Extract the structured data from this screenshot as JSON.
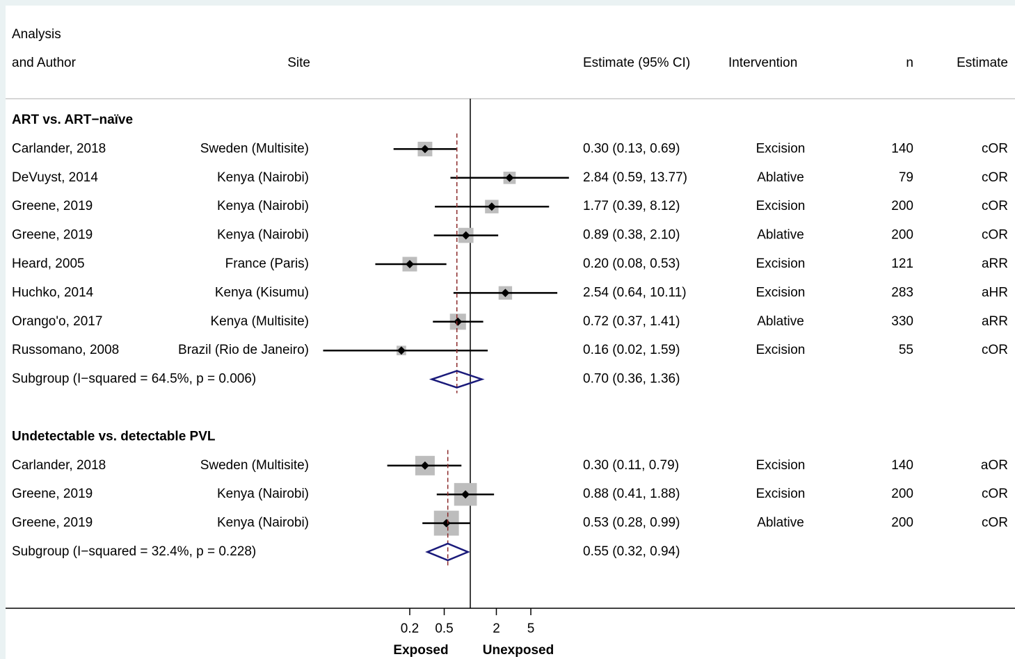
{
  "chart_data": {
    "type": "forest",
    "log_scale": true,
    "reference": 1,
    "xlim": [
      0.02,
      14
    ],
    "xticks": [
      0.2,
      0.5,
      2,
      5
    ],
    "xlabel_left": "Exposed",
    "xlabel_right": "Unexposed",
    "header": {
      "author_top": "Analysis",
      "author": "and Author",
      "site": "Site",
      "estimate": "Estimate (95% CI)",
      "intervention": "Intervention",
      "n": "n",
      "measure": "Estimate"
    },
    "groups": [
      {
        "title": "ART vs. ART−naïve",
        "studies": [
          {
            "author": "Carlander, 2018",
            "site": "Sweden (Multisite)",
            "estimate": 0.3,
            "lower": 0.13,
            "upper": 0.69,
            "estimate_label": "0.30 (0.13, 0.69)",
            "intervention": "Excision",
            "n": 140,
            "measure": "cOR",
            "weight": 14
          },
          {
            "author": "DeVuyst, 2014",
            "site": "Kenya (Nairobi)",
            "estimate": 2.84,
            "lower": 0.59,
            "upper": 13.77,
            "estimate_label": "2.84 (0.59, 13.77)",
            "intervention": "Ablative",
            "n": 79,
            "measure": "cOR",
            "weight": 10
          },
          {
            "author": "Greene, 2019",
            "site": "Kenya (Nairobi)",
            "estimate": 1.77,
            "lower": 0.39,
            "upper": 8.12,
            "estimate_label": "1.77 (0.39, 8.12)",
            "intervention": "Excision",
            "n": 200,
            "measure": "cOR",
            "weight": 12
          },
          {
            "author": "Greene, 2019",
            "site": "Kenya (Nairobi)",
            "estimate": 0.89,
            "lower": 0.38,
            "upper": 2.1,
            "estimate_label": "0.89 (0.38, 2.10)",
            "intervention": "Ablative",
            "n": 200,
            "measure": "cOR",
            "weight": 15
          },
          {
            "author": "Heard, 2005",
            "site": "France (Paris)",
            "estimate": 0.2,
            "lower": 0.08,
            "upper": 0.53,
            "estimate_label": "0.20 (0.08, 0.53)",
            "intervention": "Excision",
            "n": 121,
            "measure": "aRR",
            "weight": 14
          },
          {
            "author": "Huchko, 2014",
            "site": "Kenya (Kisumu)",
            "estimate": 2.54,
            "lower": 0.64,
            "upper": 10.11,
            "estimate_label": "2.54 (0.64, 10.11)",
            "intervention": "Excision",
            "n": 283,
            "measure": "aHR",
            "weight": 12
          },
          {
            "author": "Orango'o, 2017",
            "site": "Kenya (Multisite)",
            "estimate": 0.72,
            "lower": 0.37,
            "upper": 1.41,
            "estimate_label": "0.72 (0.37, 1.41)",
            "intervention": "Ablative",
            "n": 330,
            "measure": "aRR",
            "weight": 17
          },
          {
            "author": "Russomano, 2008",
            "site": "Brazil (Rio de Janeiro)",
            "estimate": 0.16,
            "lower": 0.02,
            "upper": 1.59,
            "estimate_label": "0.16 (0.02, 1.59)",
            "intervention": "Excision",
            "n": 55,
            "measure": "cOR",
            "weight": 6
          }
        ],
        "pooled": {
          "label": "Subgroup (I−squared = 64.5%, p = 0.006)",
          "estimate": 0.7,
          "lower": 0.36,
          "upper": 1.36,
          "estimate_label": "0.70 (0.36, 1.36)"
        }
      },
      {
        "title": "Undetectable vs. detectable PVL",
        "studies": [
          {
            "author": "Carlander, 2018",
            "site": "Sweden (Multisite)",
            "estimate": 0.3,
            "lower": 0.11,
            "upper": 0.79,
            "estimate_label": "0.30 (0.11, 0.79)",
            "intervention": "Excision",
            "n": 140,
            "measure": "aOR",
            "weight": 25
          },
          {
            "author": "Greene, 2019",
            "site": "Kenya (Nairobi)",
            "estimate": 0.88,
            "lower": 0.41,
            "upper": 1.88,
            "estimate_label": "0.88 (0.41, 1.88)",
            "intervention": "Excision",
            "n": 200,
            "measure": "cOR",
            "weight": 34
          },
          {
            "author": "Greene, 2019",
            "site": "Kenya (Nairobi)",
            "estimate": 0.53,
            "lower": 0.28,
            "upper": 0.99,
            "estimate_label": "0.53 (0.28, 0.99)",
            "intervention": "Ablative",
            "n": 200,
            "measure": "cOR",
            "weight": 41
          }
        ],
        "pooled": {
          "label": "Subgroup (I−squared = 32.4%, p = 0.228)",
          "estimate": 0.55,
          "lower": 0.32,
          "upper": 0.94,
          "estimate_label": "0.55 (0.32, 0.94)"
        }
      }
    ]
  }
}
